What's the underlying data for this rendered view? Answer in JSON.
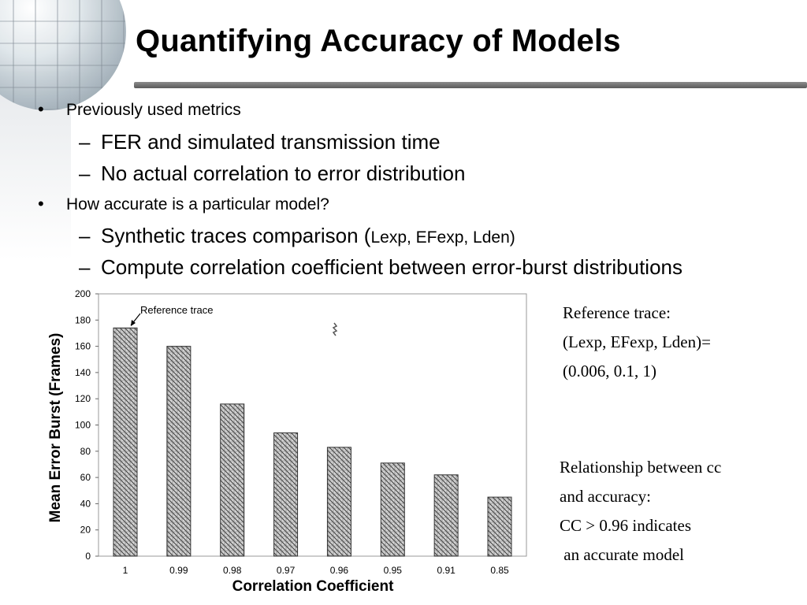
{
  "slide": {
    "title": "Quantifying Accuracy of Models",
    "bullets": [
      {
        "text": "Previously used metrics"
      },
      {
        "text": "FER and simulated transmission time"
      },
      {
        "text": "No actual correlation to error distribution"
      },
      {
        "text": "How accurate is a particular model?"
      },
      {
        "text": "Synthetic traces comparison (",
        "small": "Lexp, EFexp, Lden",
        "close": ")"
      },
      {
        "text": "Compute correlation coefficient between error-burst distributions"
      }
    ],
    "bullet_symbol": "•",
    "dash_symbol": "–",
    "note1": [
      "Reference trace:",
      "(Lexp, EFexp, Lden)=",
      "(0.006, 0.1, 1)"
    ],
    "note2": [
      "Relationship between cc",
      "and accuracy:",
      "CC > 0.96 indicates",
      " an accurate model"
    ]
  },
  "chart_data": {
    "type": "bar",
    "categories": [
      "1",
      "0.99",
      "0.98",
      "0.97",
      "0.96",
      "0.95",
      "0.91",
      "0.85"
    ],
    "values": [
      174,
      160,
      116,
      94,
      83,
      71,
      62,
      45
    ],
    "xlabel": "Correlation Coefficient",
    "ylabel": "Mean Error Burst (Frames)",
    "ylim": [
      0,
      200
    ],
    "yticks": [
      0,
      20,
      40,
      60,
      80,
      100,
      120,
      140,
      160,
      180,
      200
    ],
    "annotation": "Reference trace",
    "bar_fill_color": "#b9b9b9",
    "bar_line_color": "#333333",
    "grid": false
  }
}
